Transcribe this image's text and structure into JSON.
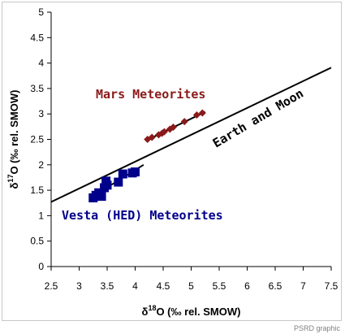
{
  "chart_data": {
    "type": "scatter",
    "xlabel_prefix": "δ",
    "xlabel_sup": "18",
    "xlabel_rest": "O (‰ rel. SMOW)",
    "ylabel_prefix": "δ",
    "ylabel_sup": "17",
    "ylabel_rest": "O (‰ rel. SMOW)",
    "xlim": [
      2.5,
      7.5
    ],
    "ylim": [
      0,
      5
    ],
    "x_ticks": [
      "2.5",
      "3",
      "3.5",
      "4",
      "4.5",
      "5",
      "5.5",
      "6",
      "6.5",
      "7",
      "7.5"
    ],
    "y_ticks": [
      "0",
      "0.5",
      "1",
      "1.5",
      "2",
      "2.5",
      "3",
      "3.5",
      "4",
      "4.5",
      "5"
    ],
    "grid": false,
    "series": [
      {
        "name": "Mars Meteorites",
        "marker": "diamond",
        "color": "#8b1a1a",
        "points": [
          [
            4.22,
            2.5
          ],
          [
            4.3,
            2.54
          ],
          [
            4.42,
            2.59
          ],
          [
            4.48,
            2.62
          ],
          [
            4.52,
            2.65
          ],
          [
            4.62,
            2.7
          ],
          [
            4.68,
            2.74
          ],
          [
            4.88,
            2.85
          ],
          [
            5.1,
            2.98
          ],
          [
            5.2,
            3.02
          ]
        ]
      },
      {
        "name": "Vesta (HED) Meteorites",
        "marker": "square",
        "color": "#00008b",
        "points": [
          [
            3.25,
            1.35
          ],
          [
            3.3,
            1.4
          ],
          [
            3.35,
            1.45
          ],
          [
            3.4,
            1.38
          ],
          [
            3.45,
            1.55
          ],
          [
            3.48,
            1.68
          ],
          [
            3.5,
            1.6
          ],
          [
            3.7,
            1.66
          ],
          [
            3.78,
            1.82
          ],
          [
            3.95,
            1.84
          ],
          [
            4.0,
            1.86
          ]
        ]
      }
    ],
    "lines": [
      {
        "name": "Earth and Moon",
        "from": [
          2.5,
          1.27
        ],
        "to": [
          7.5,
          3.91
        ]
      },
      {
        "name": "vesta-fit",
        "from": [
          3.2,
          1.35
        ],
        "to": [
          4.15,
          2.0
        ]
      },
      {
        "name": "mars-fit",
        "from": [
          4.2,
          2.48
        ],
        "to": [
          5.25,
          3.04
        ]
      }
    ],
    "annotations": {
      "mars": {
        "text": "Mars Meteorites",
        "color": "#8b1a1a"
      },
      "earth": {
        "text": "Earth and Moon",
        "color": "#000000"
      },
      "vesta": {
        "text": "Vesta (HED) Meteorites",
        "color": "#00008b"
      }
    }
  },
  "credit": "PSRD graphic"
}
